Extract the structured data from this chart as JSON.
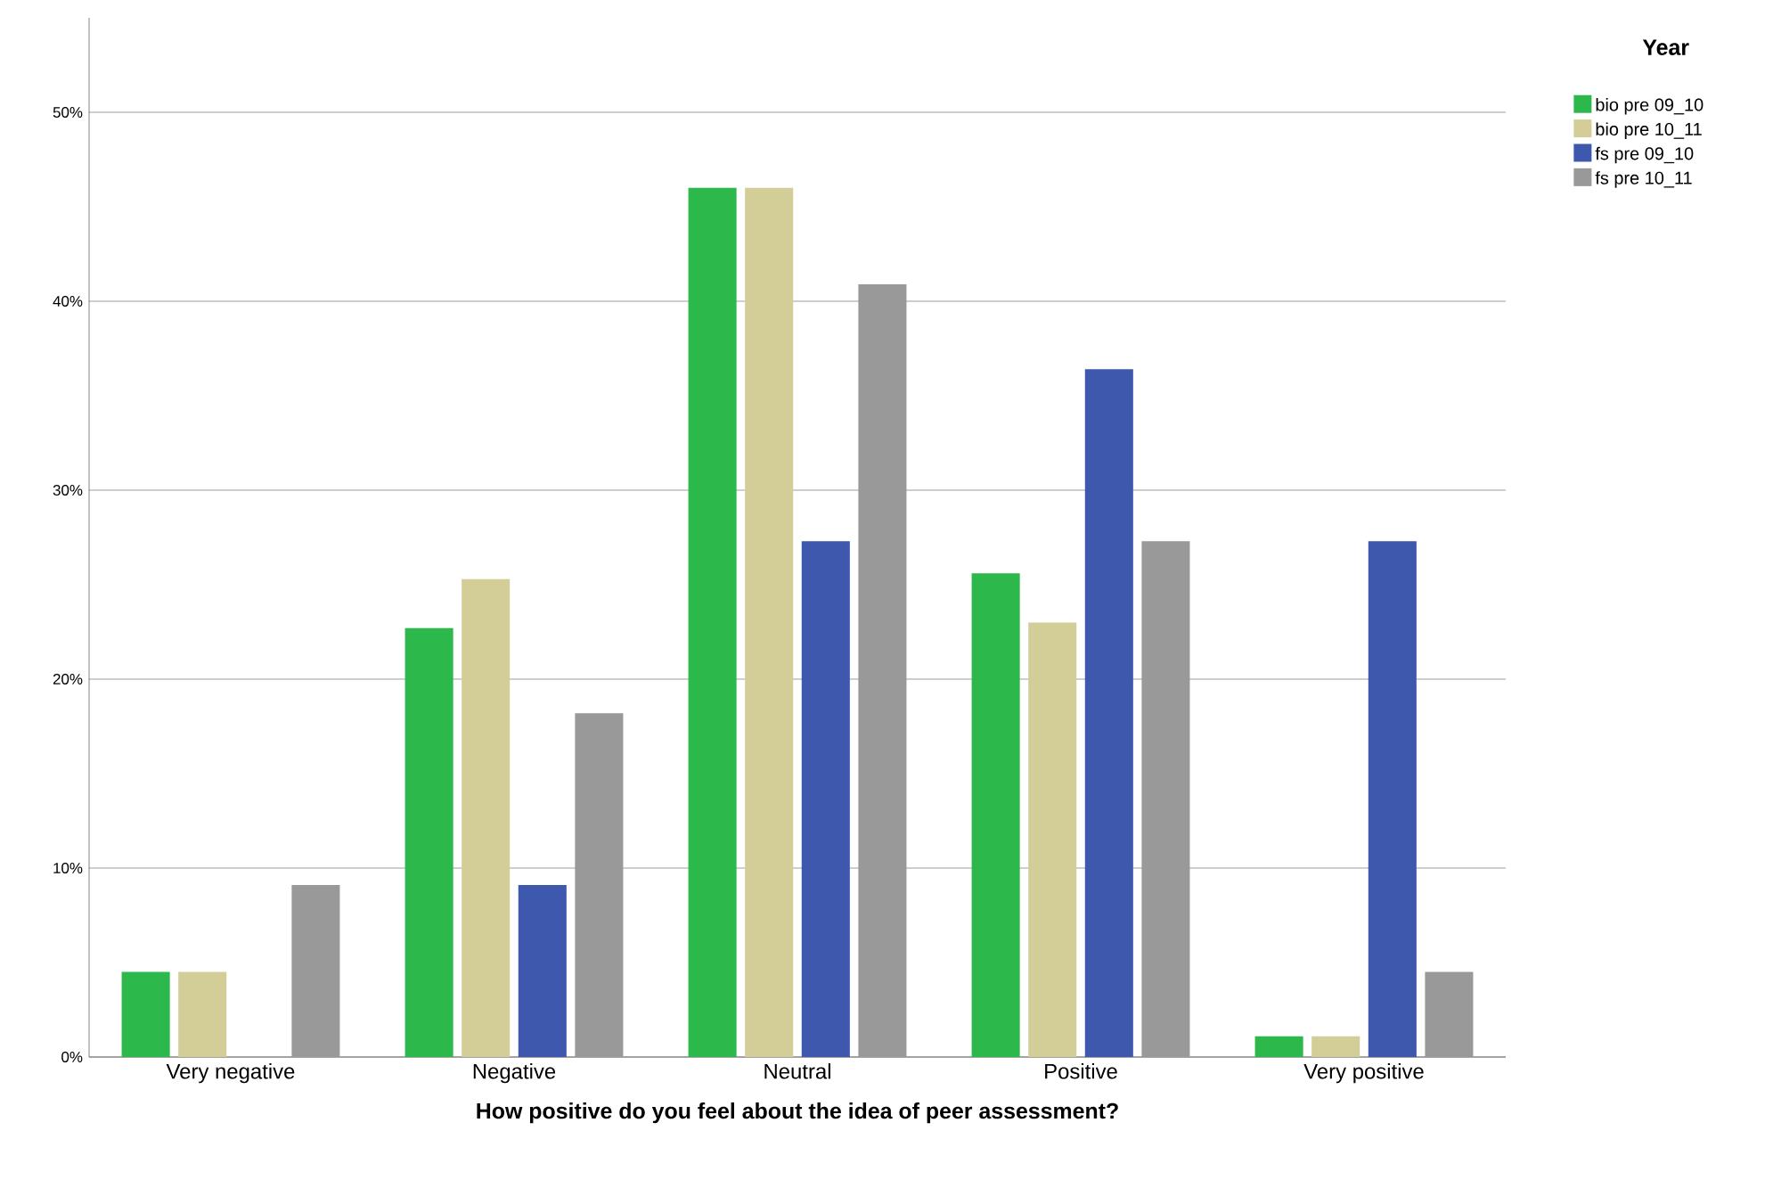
{
  "chart_data": {
    "type": "bar",
    "xlabel": "How positive do you feel about the idea of peer assessment?",
    "legend_title": "Year",
    "categories": [
      "Very negative",
      "Negative",
      "Neutral",
      "Positive",
      "Very positive"
    ],
    "series": [
      {
        "name": "bio pre 09_10",
        "color": "#2db84b",
        "values": [
          4.5,
          22.7,
          46.0,
          25.6,
          1.1
        ]
      },
      {
        "name": "bio pre 10_11",
        "color": "#d3ce97",
        "values": [
          4.5,
          25.3,
          46.0,
          23.0,
          1.1
        ]
      },
      {
        "name": "fs pre 09_10",
        "color": "#3d58ac",
        "values": [
          null,
          9.1,
          27.3,
          36.4,
          27.3
        ]
      },
      {
        "name": "fs pre 10_11",
        "color": "#999999",
        "values": [
          9.1,
          18.2,
          40.9,
          27.3,
          4.5
        ]
      }
    ],
    "ylim": [
      0,
      55
    ],
    "yticks": [
      {
        "value": 0,
        "label": "0%"
      },
      {
        "value": 10,
        "label": "10%"
      },
      {
        "value": 20,
        "label": "20%"
      },
      {
        "value": 30,
        "label": "30%"
      },
      {
        "value": 40,
        "label": "40%"
      },
      {
        "value": 50,
        "label": "50%"
      }
    ],
    "grid": "y",
    "legend": "top right"
  }
}
